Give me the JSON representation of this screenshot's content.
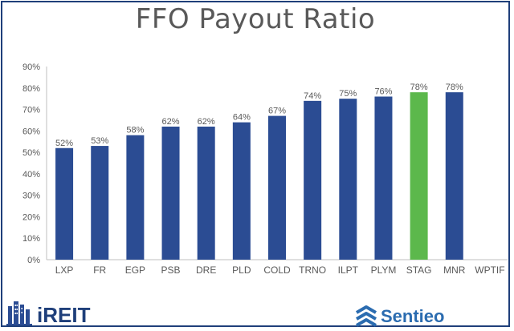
{
  "chart_data": {
    "type": "bar",
    "title": "FFO Payout Ratio",
    "categories": [
      "LXP",
      "FR",
      "EGP",
      "PSB",
      "DRE",
      "PLD",
      "COLD",
      "TRNO",
      "ILPT",
      "PLYM",
      "STAG",
      "MNR",
      "WPTIF"
    ],
    "values": [
      52,
      53,
      58,
      62,
      62,
      64,
      67,
      74,
      75,
      76,
      78,
      78,
      null
    ],
    "value_labels": [
      "52%",
      "53%",
      "58%",
      "62%",
      "62%",
      "64%",
      "67%",
      "74%",
      "75%",
      "76%",
      "78%",
      "78%",
      ""
    ],
    "highlight_category": "STAG",
    "ylim": [
      0,
      90
    ],
    "yticks": [
      "0%",
      "10%",
      "20%",
      "30%",
      "40%",
      "50%",
      "60%",
      "70%",
      "80%",
      "90%"
    ],
    "grid": false,
    "xlabel": "",
    "ylabel": ""
  },
  "colors": {
    "bar": "#2b4c93",
    "highlight": "#5cb84c",
    "frame": "#1f3f7a",
    "text": "#595959",
    "axis": "#bfbfbf"
  },
  "logos": {
    "left": "iREIT",
    "right": "Sentieo"
  }
}
